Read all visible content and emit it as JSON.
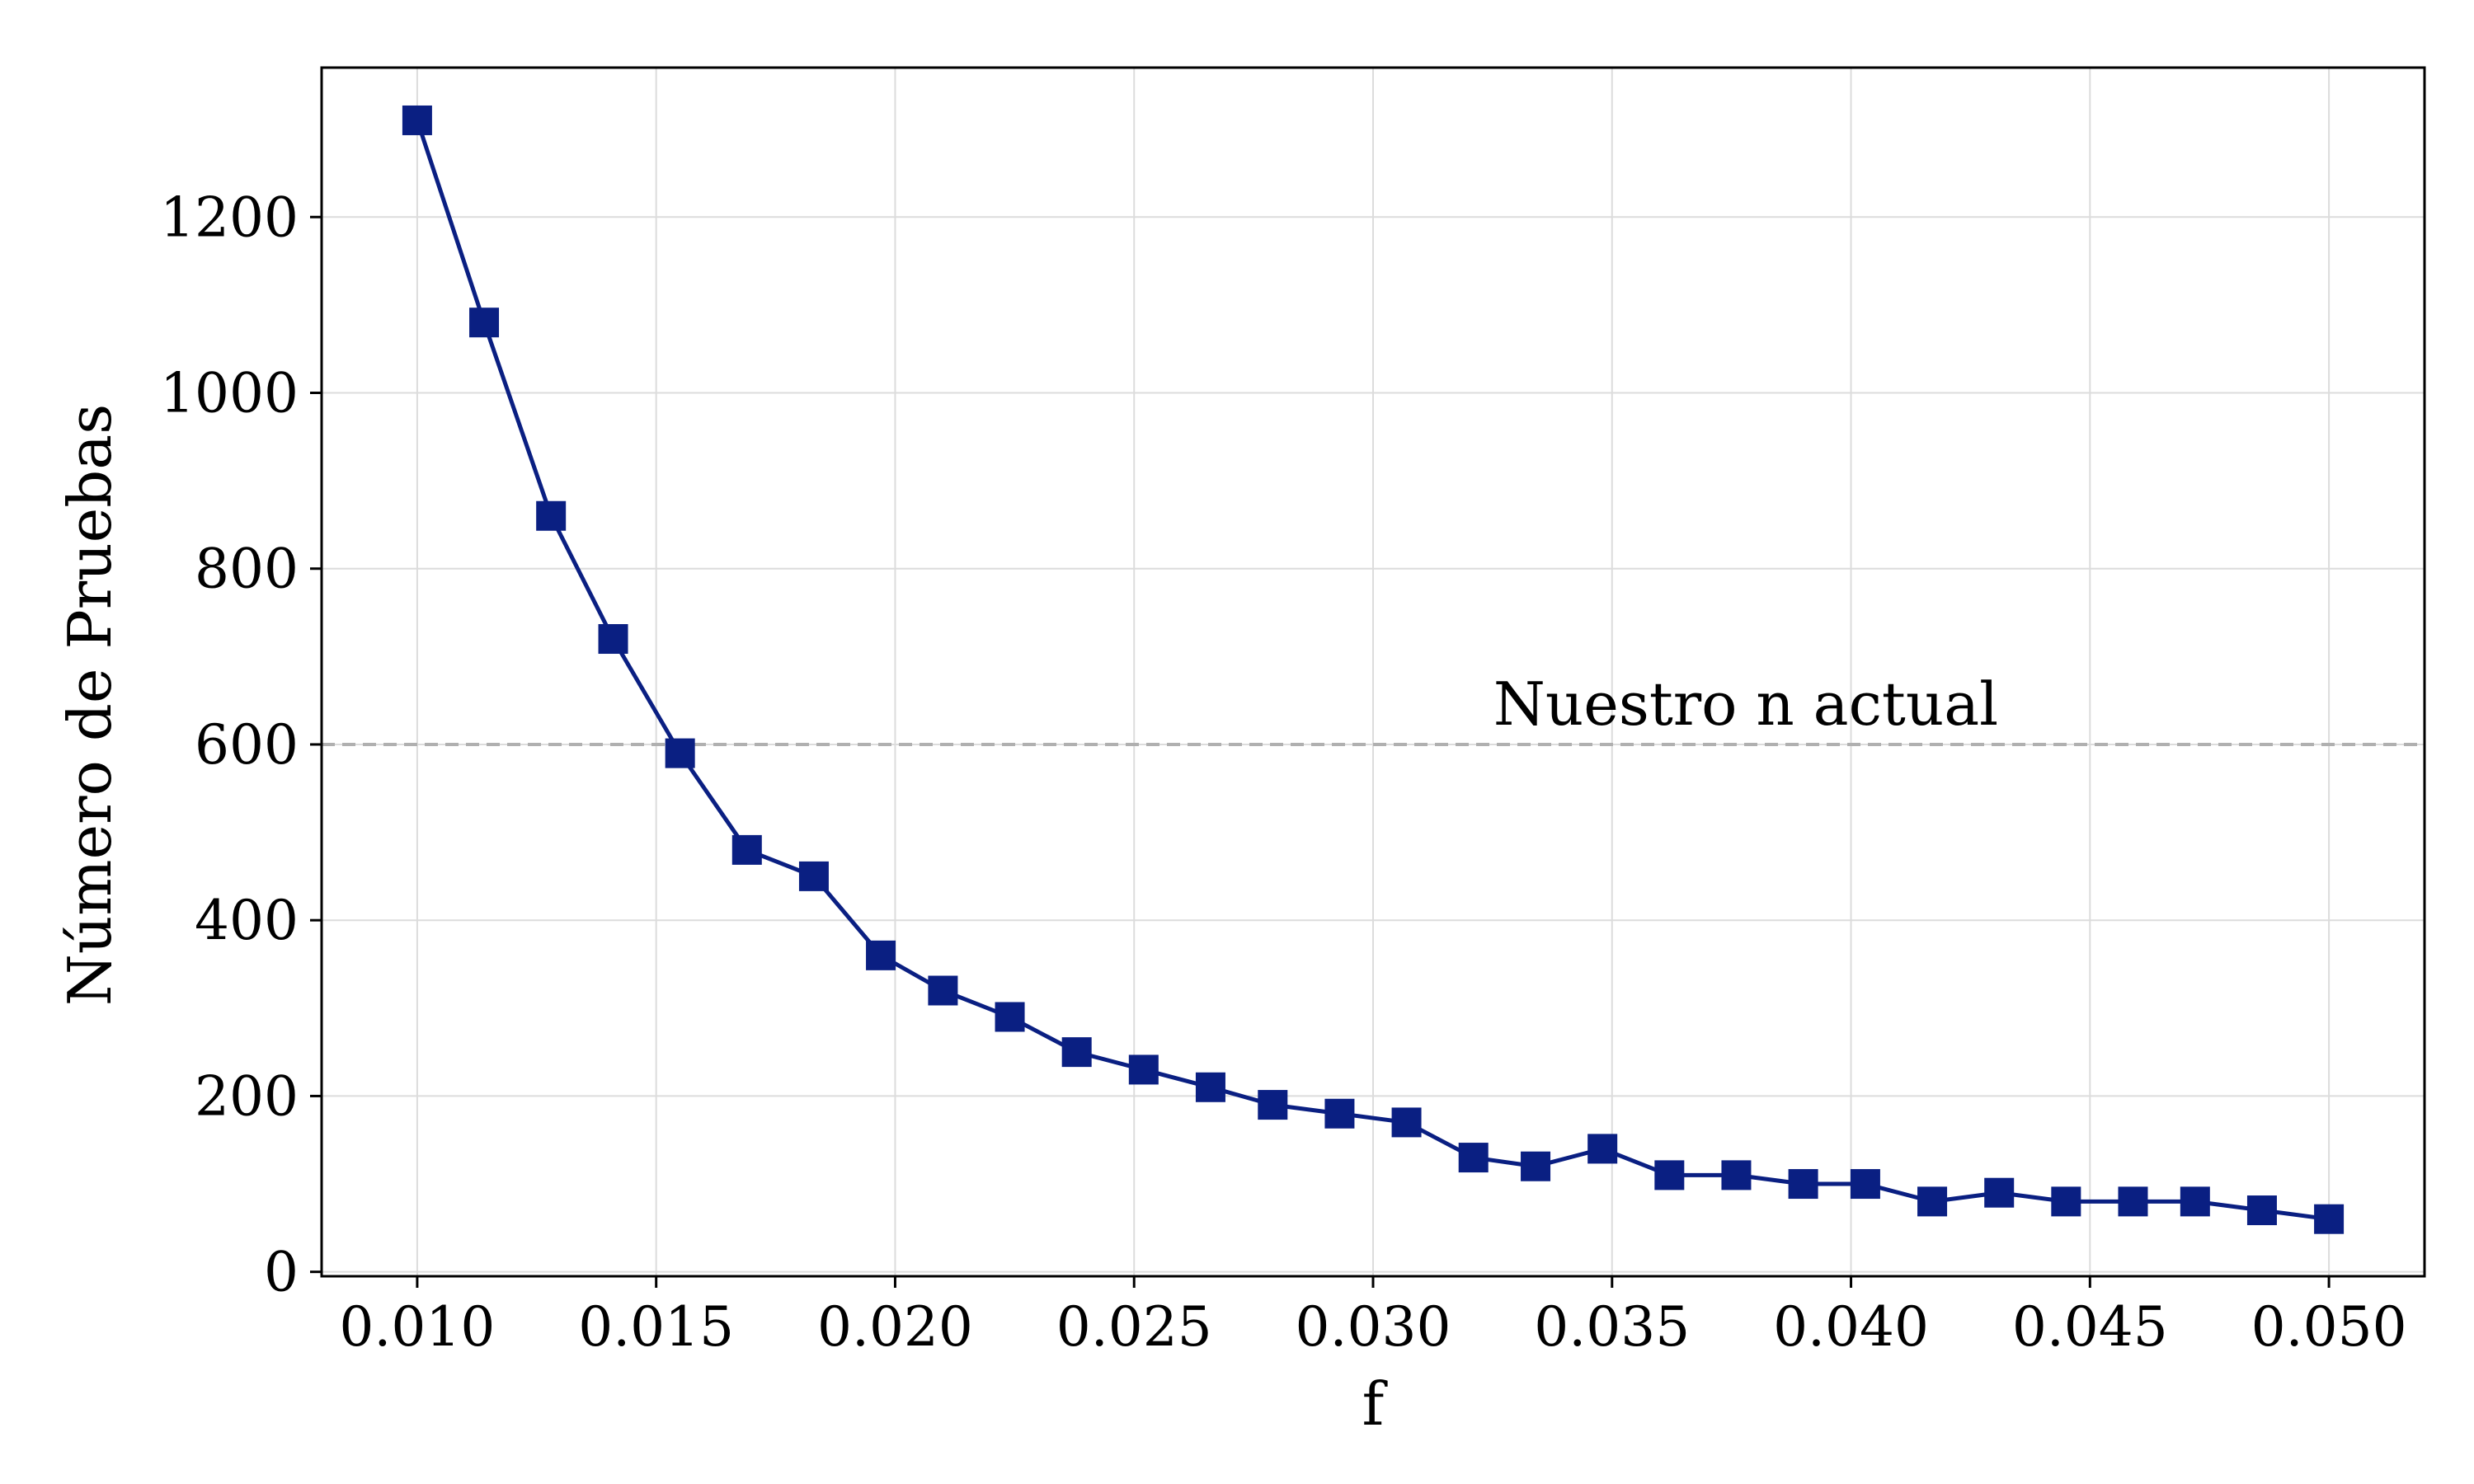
{
  "chart_data": {
    "type": "line",
    "xlabel": "f",
    "ylabel": "Número de Pruebas",
    "xlim": [
      0.008,
      0.052
    ],
    "ylim": [
      -5,
      1370
    ],
    "x_ticks": [
      "0.010",
      "0.015",
      "0.020",
      "0.025",
      "0.030",
      "0.035",
      "0.040",
      "0.045",
      "0.050"
    ],
    "y_ticks": [
      "0",
      "200",
      "400",
      "600",
      "800",
      "1000",
      "1200"
    ],
    "grid": true,
    "series": [
      {
        "color": "#0a1f82",
        "marker": "square",
        "x": [
          0.01,
          0.0114,
          0.0128,
          0.0141,
          0.0155,
          0.0169,
          0.0183,
          0.0197,
          0.021,
          0.0224,
          0.0238,
          0.0252,
          0.0266,
          0.0279,
          0.0293,
          0.0307,
          0.0321,
          0.0334,
          0.0348,
          0.0362,
          0.0376,
          0.039,
          0.0403,
          0.0417,
          0.0431,
          0.0445,
          0.0459,
          0.0472,
          0.0486,
          0.05
        ],
        "values": [
          1310,
          1080,
          860,
          720,
          590,
          480,
          450,
          360,
          320,
          290,
          250,
          230,
          210,
          190,
          180,
          170,
          130,
          120,
          140,
          110,
          110,
          100,
          100,
          80,
          90,
          80,
          80,
          80,
          70,
          60
        ]
      }
    ],
    "reference_line": {
      "y": 600,
      "color": "#b0b0b0",
      "style": "dashed",
      "label": "Nuestro n actual"
    }
  }
}
